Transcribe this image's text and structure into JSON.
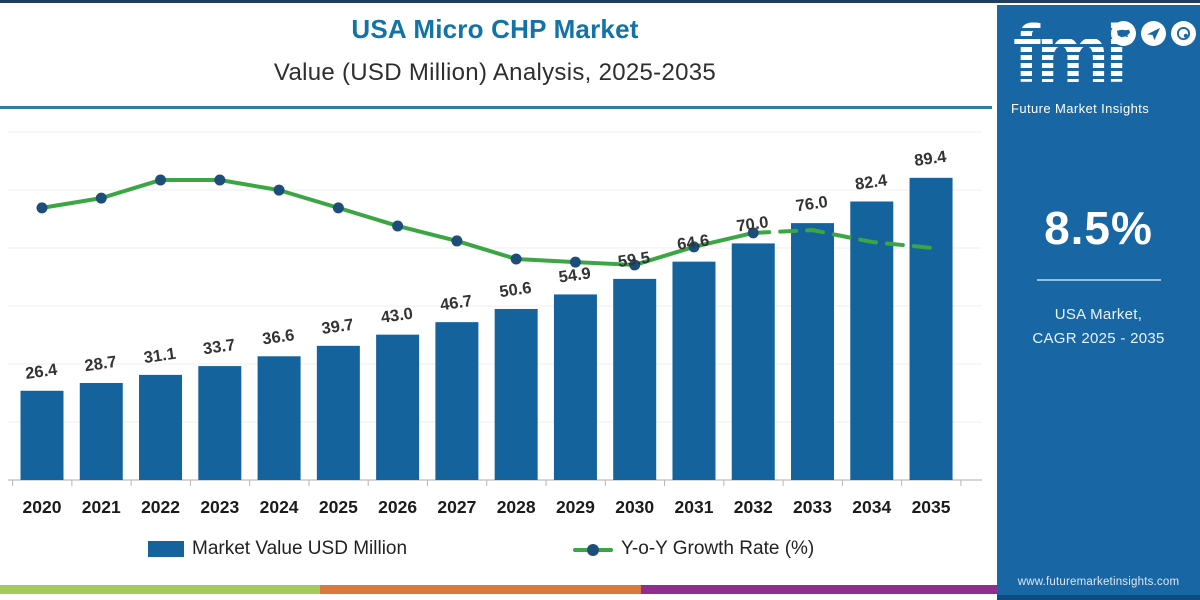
{
  "header": {
    "title": "USA Micro CHP Market",
    "subtitle": "Value (USD Million) Analysis, 2025-2035"
  },
  "chart_data": {
    "type": "bar",
    "categories": [
      "2020",
      "2021",
      "2022",
      "2023",
      "2024",
      "2025",
      "2026",
      "2027",
      "2028",
      "2029",
      "2030",
      "2031",
      "2032",
      "2033",
      "2034",
      "2035"
    ],
    "title": "USA Micro CHP Market",
    "subtitle": "Value (USD Million) Analysis, 2025-2035",
    "xlabel": "",
    "ylabel": "",
    "grid": "faint horizontal",
    "legend_position": "bottom",
    "bar_series": {
      "name": "Market Value USD Million",
      "values": [
        26.4,
        28.7,
        31.1,
        33.7,
        36.6,
        39.7,
        43.0,
        46.7,
        50.6,
        54.9,
        59.5,
        64.6,
        70.0,
        76.0,
        82.4,
        89.4
      ],
      "color": "#14639c"
    },
    "line_series": {
      "name": "Y-o-Y Growth Rate (%)",
      "note": "secondary axis not labeled; values are percent of plot height read from pixels",
      "y_percent_of_plot": [
        78.2,
        81.0,
        86.2,
        86.2,
        83.3,
        78.2,
        73.0,
        68.7,
        63.5,
        62.6,
        61.8,
        67.0,
        71.0,
        71.8,
        68.4,
        66.7
      ],
      "color": "#3ba643",
      "marker_color": "#1d4e79",
      "solid_through_index": 12,
      "dashed_after": "2032"
    }
  },
  "legend": {
    "bar_label": "Market Value USD Million",
    "line_label": "Y-o-Y Growth Rate (%)"
  },
  "sidebar": {
    "bg_color": "#1966a4",
    "logo_text": "fmi",
    "logo_subtext": "Future Market Insights",
    "icons": [
      "usa-map-icon",
      "paper-plane-icon",
      "globe-icon"
    ],
    "cagr_value": "8.5%",
    "cagr_line1": "USA Market,",
    "cagr_line2": "CAGR 2025 - 2035",
    "website": "www.futuremarketinsights.com"
  },
  "footer_stripe": {
    "colors": [
      "#a6c95d",
      "#d97a3c",
      "#8e2f8f"
    ]
  },
  "style_colors": {
    "title_blue": "#1273a6",
    "divider_teal": "#2f7ca8",
    "top_hairline": "#1e3e5f"
  }
}
